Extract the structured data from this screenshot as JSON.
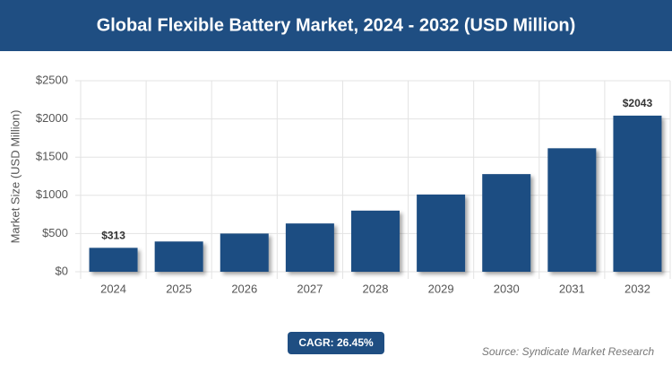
{
  "chart_data": {
    "type": "bar",
    "title": "Global Flexible Battery Market, 2024 - 2032 (USD Million)",
    "y_label": "Market Size (USD Million)",
    "categories": [
      "2024",
      "2025",
      "2026",
      "2027",
      "2028",
      "2029",
      "2030",
      "2031",
      "2032"
    ],
    "values": [
      313,
      396,
      500,
      632,
      800,
      1011,
      1278,
      1616,
      2043
    ],
    "value_labels": [
      "$313",
      null,
      null,
      null,
      null,
      null,
      null,
      null,
      "$2043"
    ],
    "color": "#1f4e82",
    "ylim": [
      0,
      2500
    ],
    "yticks": [
      {
        "value": 0,
        "label": "$0"
      },
      {
        "value": 500,
        "label": "$500"
      },
      {
        "value": 1000,
        "label": "$1000"
      },
      {
        "value": 1500,
        "label": "$1500"
      },
      {
        "value": 2000,
        "label": "$2000"
      },
      {
        "value": 2500,
        "label": "$2500"
      }
    ],
    "grid": true,
    "badge": "CAGR: 26.45%",
    "source": "Source: Syndicate Market Research"
  }
}
